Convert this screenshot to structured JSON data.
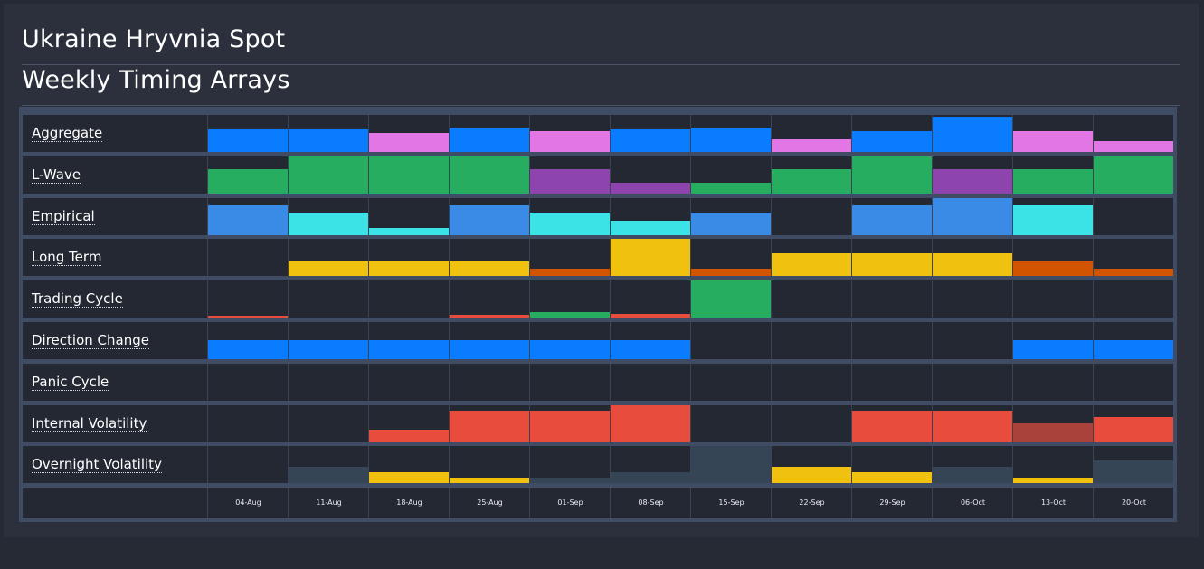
{
  "header": {
    "title": "Ukraine Hryvnia Spot",
    "subtitle": "Weekly Timing Arrays"
  },
  "colors": {
    "blue": "#0a7cff",
    "pink": "#e276e4",
    "green": "#27ad60",
    "purple": "#8e44ad",
    "lightblue": "#3a8be6",
    "cyan": "#3ce3e6",
    "yellow": "#f0c20f",
    "orange": "#d35400",
    "red": "#e74c3c",
    "darkred": "#a8423a",
    "slate": "#354556",
    "gridbg": "#3f4c63",
    "cellbg": "#242833"
  },
  "weeks": [
    "04-Aug",
    "11-Aug",
    "18-Aug",
    "25-Aug",
    "01-Sep",
    "08-Sep",
    "15-Sep",
    "22-Sep",
    "29-Sep",
    "06-Oct",
    "13-Oct",
    "20-Oct"
  ],
  "rows": [
    {
      "label": "Aggregate",
      "values": [
        0.6,
        0.6,
        0.5,
        0.65,
        0.55,
        0.6,
        0.65,
        0.35,
        0.55,
        0.95,
        0.55,
        0.3
      ],
      "colors": [
        "blue",
        "blue",
        "pink",
        "blue",
        "pink",
        "blue",
        "blue",
        "pink",
        "blue",
        "blue",
        "pink",
        "pink"
      ]
    },
    {
      "label": "L-Wave",
      "values": [
        0.65,
        1.0,
        1.0,
        1.0,
        0.65,
        0.3,
        0.3,
        0.65,
        1.0,
        0.65,
        0.65,
        1.0
      ],
      "colors": [
        "green",
        "green",
        "green",
        "green",
        "purple",
        "purple",
        "green",
        "green",
        "green",
        "purple",
        "green",
        "green"
      ]
    },
    {
      "label": "Empirical",
      "values": [
        0.8,
        0.6,
        0.2,
        0.8,
        0.6,
        0.4,
        0.6,
        0,
        0.8,
        1.0,
        0.8,
        0
      ],
      "colors": [
        "lightblue",
        "cyan",
        "cyan",
        "lightblue",
        "cyan",
        "cyan",
        "lightblue",
        "lightblue",
        "lightblue",
        "lightblue",
        "cyan",
        "cyan"
      ]
    },
    {
      "label": "Long Term",
      "values": [
        0,
        0.4,
        0.4,
        0.4,
        0.2,
        1.0,
        0.2,
        0.6,
        0.6,
        0.6,
        0.4,
        0.2
      ],
      "colors": [
        "yellow",
        "yellow",
        "yellow",
        "yellow",
        "orange",
        "yellow",
        "orange",
        "yellow",
        "yellow",
        "yellow",
        "orange",
        "orange"
      ]
    },
    {
      "label": "Trading Cycle",
      "values": [
        0.05,
        0,
        0,
        0.08,
        0.15,
        0.1,
        1.0,
        0,
        0,
        0,
        0,
        0
      ],
      "colors": [
        "red",
        "red",
        "red",
        "red",
        "green",
        "red",
        "green",
        "green",
        "green",
        "green",
        "green",
        "green"
      ]
    },
    {
      "label": "Direction Change",
      "values": [
        0.5,
        0.5,
        0.5,
        0.5,
        0.5,
        0.5,
        0,
        0,
        0,
        0,
        0.5,
        0.5
      ],
      "colors": [
        "blue",
        "blue",
        "blue",
        "blue",
        "blue",
        "blue",
        "blue",
        "blue",
        "blue",
        "blue",
        "blue",
        "blue"
      ]
    },
    {
      "label": "Panic Cycle",
      "values": [
        0,
        0,
        0,
        0,
        0,
        0,
        0,
        0,
        0,
        0,
        0,
        0
      ],
      "colors": [
        "blue",
        "blue",
        "blue",
        "blue",
        "blue",
        "blue",
        "blue",
        "blue",
        "blue",
        "blue",
        "blue",
        "blue"
      ]
    },
    {
      "label": "Internal Volatility",
      "values": [
        0,
        0,
        0.35,
        0.85,
        0.85,
        1.0,
        0,
        0,
        0.85,
        0.85,
        0.5,
        0.68
      ],
      "colors": [
        "red",
        "red",
        "red",
        "red",
        "red",
        "red",
        "red",
        "red",
        "red",
        "red",
        "darkred",
        "red"
      ]
    },
    {
      "label": "Overnight Volatility",
      "values": [
        0,
        0.45,
        0.3,
        0.15,
        0.15,
        0.3,
        1.0,
        0.45,
        0.3,
        0.45,
        0.15,
        0.6
      ],
      "colors": [
        "slate",
        "slate",
        "yellow",
        "yellow",
        "slate",
        "slate",
        "slate",
        "yellow",
        "yellow",
        "slate",
        "yellow",
        "slate"
      ]
    }
  ]
}
